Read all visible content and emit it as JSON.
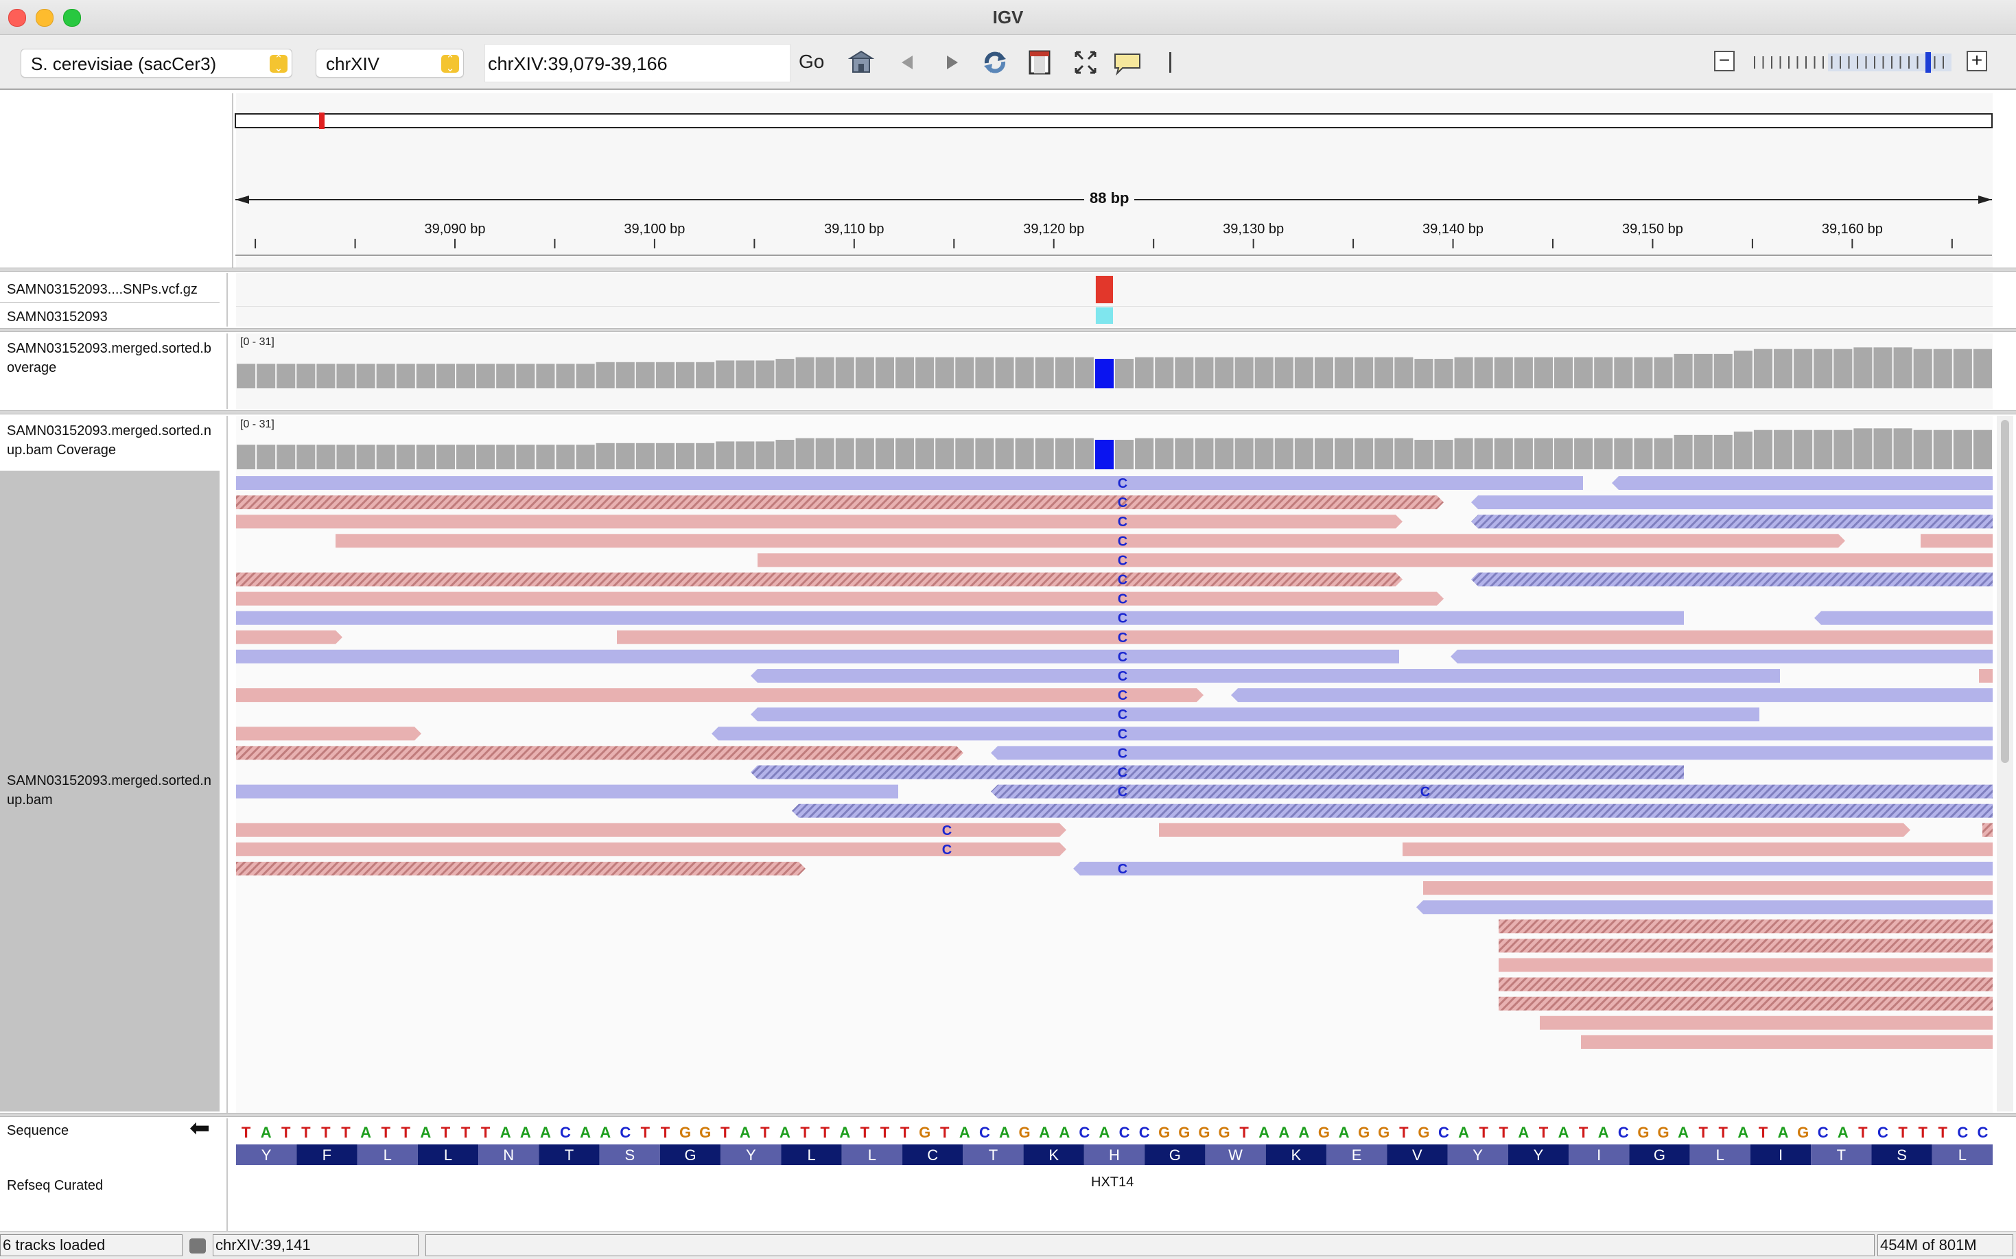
{
  "window": {
    "title": "IGV"
  },
  "toolbar": {
    "genome": "S. cerevisiae (sacCer3)",
    "chromosome": "chrXIV",
    "locus": "chrXIV:39,079-39,166",
    "go_label": "Go",
    "icons": [
      "home-icon",
      "back-arrow-icon",
      "forward-arrow-icon",
      "refresh-icon",
      "roi-icon",
      "fit-window-icon",
      "popup-info-icon",
      "ruler-line-icon"
    ],
    "zoom_minus": "−",
    "zoom_plus": "+",
    "zoom_levels": 23,
    "zoom_current_index": 20
  },
  "ruler": {
    "span_label": "88 bp",
    "ticks": [
      {
        "pos": 39090,
        "label": "39,090 bp"
      },
      {
        "pos": 39100,
        "label": "39,100 bp"
      },
      {
        "pos": 39110,
        "label": "39,110 bp"
      },
      {
        "pos": 39120,
        "label": "39,120 bp"
      },
      {
        "pos": 39130,
        "label": "39,130 bp"
      },
      {
        "pos": 39140,
        "label": "39,140 bp"
      },
      {
        "pos": 39150,
        "label": "39,150 bp"
      },
      {
        "pos": 39160,
        "label": "39,160 bp"
      }
    ],
    "minor_ticks": [
      39080,
      39085,
      39095,
      39105,
      39115,
      39125,
      39135,
      39145,
      39155,
      39165
    ]
  },
  "tracks": {
    "vcf_label": "SAMN03152093....SNPs.vcf.gz",
    "sample_label": "SAMN03152093",
    "coverage1_label": "SAMN03152093.merged.sorted.b\noverage",
    "coverage2_label": "SAMN03152093.merged.sorted.n\nup.bam Coverage",
    "bam_label": "SAMN03152093.merged.sorted.n\nup.bam",
    "sequence_label": "Sequence",
    "refseq_label": "Refseq Curated",
    "coverage_range": "[0 - 31]",
    "gene_name": "HXT14"
  },
  "coverage": [
    15,
    15,
    15,
    15,
    15,
    15,
    15,
    15,
    15,
    15,
    15,
    15,
    15,
    15,
    15,
    15,
    15,
    15,
    16,
    16,
    16,
    16,
    16,
    16,
    17,
    17,
    17,
    18,
    19,
    19,
    19,
    19,
    19,
    19,
    19,
    19,
    19,
    19,
    19,
    19,
    19,
    19,
    19,
    18,
    18,
    19,
    19,
    19,
    19,
    19,
    19,
    19,
    19,
    19,
    19,
    19,
    19,
    19,
    19,
    18,
    18,
    19,
    19,
    19,
    19,
    19,
    19,
    19,
    19,
    19,
    19,
    19,
    21,
    21,
    21,
    23,
    24,
    24,
    24,
    24,
    24,
    25,
    25,
    25,
    24,
    24,
    24,
    24,
    23,
    23,
    23,
    22,
    22,
    22,
    22,
    22
  ],
  "snp_index": 43,
  "sequence": "TATTTTATTATTTAAACAACTTGGTATATTATTTGTACAGAACACCGGGGTAAAGAGGTGCATTATATACGGATTATAGCATCTTTCC",
  "aminoacids": [
    "Y",
    "F",
    "L",
    "L",
    "N",
    "T",
    "S",
    "G",
    "Y",
    "L",
    "L",
    "C",
    "T",
    "K",
    "H",
    "G",
    "W",
    "K",
    "E",
    "V",
    "Y",
    "Y",
    "I",
    "G",
    "L",
    "I",
    "T",
    "S",
    "L"
  ],
  "reads": [
    {
      "row": 0,
      "start": 0,
      "end": 1963,
      "c": "b",
      "mm": [
        1292
      ]
    },
    {
      "row": 0,
      "start": 2005,
      "end": 2560,
      "c": "b",
      "dir": "l"
    },
    {
      "row": 1,
      "start": 0,
      "end": 1760,
      "c": "r",
      "h": 1,
      "dir": "r",
      "mm": [
        1292
      ]
    },
    {
      "row": 1,
      "start": 1800,
      "end": 2560,
      "c": "b",
      "dir": "l"
    },
    {
      "row": 2,
      "start": 0,
      "end": 1700,
      "c": "r",
      "dir": "r",
      "mm": [
        1292
      ]
    },
    {
      "row": 2,
      "start": 1800,
      "end": 2560,
      "c": "b",
      "h": 1,
      "dir": "l"
    },
    {
      "row": 3,
      "start": 145,
      "end": 2345,
      "c": "r",
      "dir": "r",
      "mm": [
        1292
      ]
    },
    {
      "row": 3,
      "start": 2455,
      "end": 2560,
      "c": "r"
    },
    {
      "row": 4,
      "start": 760,
      "end": 2560,
      "c": "r",
      "mm": [
        1292
      ]
    },
    {
      "row": 5,
      "start": 0,
      "end": 1700,
      "c": "r",
      "h": 1,
      "dir": "r",
      "mm": [
        1292
      ]
    },
    {
      "row": 5,
      "start": 1800,
      "end": 2560,
      "c": "b",
      "h": 1,
      "dir": "l"
    },
    {
      "row": 6,
      "start": 0,
      "end": 1760,
      "c": "r",
      "dir": "r",
      "mm": [
        1292
      ]
    },
    {
      "row": 7,
      "start": 0,
      "end": 2110,
      "c": "b",
      "mm": [
        1292
      ]
    },
    {
      "row": 7,
      "start": 2300,
      "end": 2560,
      "c": "b",
      "dir": "l"
    },
    {
      "row": 8,
      "start": 0,
      "end": 155,
      "c": "r",
      "dir": "r"
    },
    {
      "row": 8,
      "start": 555,
      "end": 2560,
      "c": "r",
      "mm": [
        1292
      ]
    },
    {
      "row": 9,
      "start": 0,
      "end": 1695,
      "c": "b",
      "mm": [
        1292
      ]
    },
    {
      "row": 9,
      "start": 1770,
      "end": 2560,
      "c": "b",
      "dir": "l"
    },
    {
      "row": 10,
      "start": 750,
      "end": 2250,
      "c": "b",
      "dir": "l",
      "mm": [
        1292
      ]
    },
    {
      "row": 10,
      "start": 2540,
      "end": 2560,
      "c": "r"
    },
    {
      "row": 11,
      "start": 0,
      "end": 1410,
      "c": "r",
      "dir": "r",
      "mm": [
        1292
      ]
    },
    {
      "row": 11,
      "start": 1450,
      "end": 2560,
      "c": "b",
      "dir": "l"
    },
    {
      "row": 12,
      "start": 750,
      "end": 2220,
      "c": "b",
      "dir": "l",
      "mm": [
        1292
      ]
    },
    {
      "row": 13,
      "start": 0,
      "end": 270,
      "c": "r",
      "dir": "r"
    },
    {
      "row": 13,
      "start": 693,
      "end": 2560,
      "c": "b",
      "dir": "l",
      "mm": [
        1292
      ]
    },
    {
      "row": 14,
      "start": 0,
      "end": 1060,
      "c": "r",
      "h": 1,
      "dir": "r"
    },
    {
      "row": 14,
      "start": 1100,
      "end": 2560,
      "c": "b",
      "dir": "l",
      "mm": [
        1292
      ]
    },
    {
      "row": 15,
      "start": 750,
      "end": 2110,
      "c": "b",
      "h": 1,
      "dir": "l",
      "mm": [
        1292
      ]
    },
    {
      "row": 16,
      "start": 0,
      "end": 965,
      "c": "b"
    },
    {
      "row": 16,
      "start": 1100,
      "end": 2560,
      "c": "b",
      "h": 1,
      "dir": "l",
      "mm": [
        1292,
        1733
      ]
    },
    {
      "row": 17,
      "start": 810,
      "end": 2560,
      "c": "b",
      "h": 1,
      "dir": "l"
    },
    {
      "row": 18,
      "start": 0,
      "end": 1210,
      "c": "r",
      "dir": "r",
      "mm": [
        1036
      ]
    },
    {
      "row": 18,
      "start": 1345,
      "end": 2440,
      "c": "r",
      "dir": "r"
    },
    {
      "row": 18,
      "start": 2545,
      "end": 2560,
      "c": "r",
      "h": 1
    },
    {
      "row": 19,
      "start": 0,
      "end": 1210,
      "c": "r",
      "dir": "r",
      "mm": [
        1036
      ]
    },
    {
      "row": 19,
      "start": 1700,
      "end": 2560,
      "c": "r"
    },
    {
      "row": 20,
      "start": 0,
      "end": 830,
      "c": "r",
      "h": 1,
      "dir": "r"
    },
    {
      "row": 20,
      "start": 1220,
      "end": 2560,
      "c": "b",
      "dir": "l",
      "mm": [
        1292
      ]
    },
    {
      "row": 21,
      "start": 1730,
      "end": 2560,
      "c": "r"
    },
    {
      "row": 22,
      "start": 1720,
      "end": 2560,
      "c": "b",
      "dir": "l"
    },
    {
      "row": 23,
      "start": 1840,
      "end": 2560,
      "c": "r",
      "h": 1
    },
    {
      "row": 24,
      "start": 1840,
      "end": 2560,
      "c": "r",
      "h": 1
    },
    {
      "row": 25,
      "start": 1840,
      "end": 2560,
      "c": "r"
    },
    {
      "row": 26,
      "start": 1840,
      "end": 2560,
      "c": "r",
      "h": 1
    },
    {
      "row": 27,
      "start": 1840,
      "end": 2560,
      "c": "r",
      "h": 1
    },
    {
      "row": 28,
      "start": 1900,
      "end": 2560,
      "c": "r"
    },
    {
      "row": 29,
      "start": 1960,
      "end": 2560,
      "c": "r"
    }
  ],
  "mismatch_base": "C",
  "status": {
    "tracks_loaded": "6 tracks loaded",
    "position": "chrXIV:39,141",
    "memory": "454M of 801M"
  },
  "colors": {
    "read_forward": "#e8b1b1",
    "read_reverse": "#b3b3ea",
    "coverage": "#a9a9a9",
    "snp_coverage": "#0a14f0",
    "vcf_variant": "#e2372b",
    "genotype": "#7fe6ee",
    "aa_dark": "#0c1a6e",
    "aa_light": "#5a5fa8"
  }
}
